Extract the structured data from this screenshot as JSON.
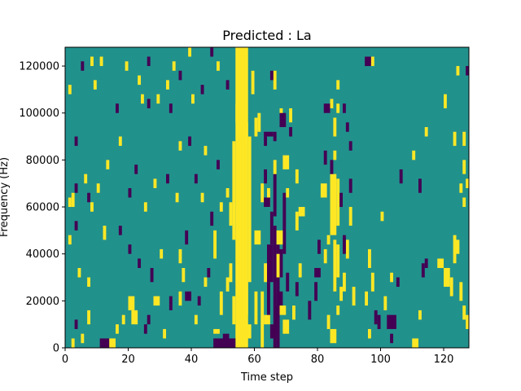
{
  "chart_data": {
    "type": "heatmap",
    "title": "Predicted : La",
    "xlabel": "Time step",
    "ylabel": "Frequency (Hz)",
    "xlim": [
      0,
      128
    ],
    "ylim": [
      0,
      128000
    ],
    "xticks": [
      0,
      20,
      40,
      60,
      80,
      100,
      120
    ],
    "yticks": [
      0,
      20000,
      40000,
      60000,
      80000,
      100000,
      120000
    ],
    "xtick_labels": [
      "0",
      "20",
      "40",
      "60",
      "80",
      "100",
      "120"
    ],
    "ytick_labels": [
      "0",
      "20000",
      "40000",
      "60000",
      "80000",
      "100000",
      "120000"
    ],
    "value_levels": [
      -1,
      0,
      1
    ],
    "colors": {
      "-1": "#440154",
      "0": "#21918c",
      "1": "#fde725"
    },
    "background_value": 0,
    "cells_note": "Each cell is [time_step_start, time_step_end, frequency_low_hz, frequency_high_hz, value]",
    "cells": [
      [
        54,
        58,
        0,
        128000,
        1
      ],
      [
        55,
        58,
        14000,
        96000,
        1
      ],
      [
        56,
        57,
        92000,
        122000,
        1
      ],
      [
        58,
        59,
        28000,
        90000,
        1
      ],
      [
        53,
        54,
        46000,
        88000,
        1
      ],
      [
        52,
        53,
        52000,
        62000,
        1
      ],
      [
        52,
        53,
        28000,
        36000,
        1
      ],
      [
        53,
        54,
        10000,
        22000,
        1
      ],
      [
        57,
        59,
        4000,
        10000,
        1
      ],
      [
        60,
        61,
        10000,
        24000,
        1
      ],
      [
        60,
        61,
        90000,
        98000,
        1
      ],
      [
        61,
        62,
        92000,
        100000,
        1
      ],
      [
        59,
        60,
        108000,
        118000,
        1
      ],
      [
        54,
        55,
        96000,
        104000,
        1
      ],
      [
        55,
        57,
        108000,
        112000,
        1
      ],
      [
        47,
        54,
        0,
        4000,
        -1
      ],
      [
        50,
        52,
        4000,
        6000,
        -1
      ],
      [
        47,
        49,
        6000,
        8000,
        1
      ],
      [
        49,
        50,
        14000,
        24000,
        1
      ],
      [
        51,
        52,
        24000,
        30000,
        1
      ],
      [
        47,
        48,
        38000,
        50000,
        1
      ],
      [
        64,
        65,
        12000,
        28000,
        -1
      ],
      [
        64,
        66,
        28000,
        44000,
        -1
      ],
      [
        65,
        66,
        44000,
        58000,
        -1
      ],
      [
        63,
        64,
        70000,
        76000,
        -1
      ],
      [
        63,
        64,
        86000,
        92000,
        -1
      ],
      [
        64,
        66,
        90000,
        92000,
        -1
      ],
      [
        66,
        67,
        0,
        52000,
        -1
      ],
      [
        66,
        67,
        56000,
        74000,
        -1
      ],
      [
        67,
        68,
        0,
        44000,
        -1
      ],
      [
        67,
        68,
        6000,
        18000,
        -1
      ],
      [
        65,
        67,
        4000,
        10000,
        -1
      ],
      [
        68,
        69,
        18000,
        24000,
        -1
      ],
      [
        68,
        69,
        30000,
        42000,
        -1
      ],
      [
        69,
        70,
        40000,
        66000,
        -1
      ],
      [
        70,
        71,
        24000,
        32000,
        -1
      ],
      [
        69,
        71,
        6000,
        12000,
        1
      ],
      [
        68,
        70,
        14000,
        18000,
        1
      ],
      [
        63,
        65,
        10000,
        14000,
        1
      ],
      [
        62,
        63,
        0,
        24000,
        1
      ],
      [
        63,
        64,
        28000,
        36000,
        1
      ],
      [
        60,
        62,
        44000,
        50000,
        1
      ],
      [
        62,
        63,
        62000,
        70000,
        1
      ],
      [
        64,
        65,
        60000,
        68000,
        1
      ],
      [
        66,
        67,
        74000,
        80000,
        1
      ],
      [
        66,
        67,
        110000,
        118000,
        1
      ],
      [
        67,
        68,
        30000,
        40000,
        1
      ],
      [
        67,
        69,
        44000,
        50000,
        1
      ],
      [
        70,
        71,
        64000,
        68000,
        1
      ],
      [
        69,
        71,
        76000,
        82000,
        1
      ],
      [
        71,
        72,
        96000,
        102000,
        1
      ],
      [
        68,
        69,
        98000,
        102000,
        1
      ],
      [
        65,
        66,
        114000,
        118000,
        -1
      ],
      [
        63,
        65,
        60000,
        64000,
        -1
      ],
      [
        66,
        67,
        88000,
        92000,
        -1
      ],
      [
        68,
        70,
        94000,
        100000,
        -1
      ],
      [
        71,
        72,
        90000,
        94000,
        -1
      ],
      [
        73,
        74,
        70000,
        76000,
        1
      ],
      [
        73,
        74,
        50000,
        58000,
        1
      ],
      [
        74,
        76,
        56000,
        60000,
        1
      ],
      [
        72,
        73,
        12000,
        18000,
        1
      ],
      [
        73,
        74,
        22000,
        28000,
        -1
      ],
      [
        74,
        75,
        30000,
        36000,
        1
      ],
      [
        84,
        86,
        48000,
        74000,
        1
      ],
      [
        85,
        86,
        24000,
        46000,
        1
      ],
      [
        86,
        87,
        52000,
        72000,
        1
      ],
      [
        86,
        87,
        30000,
        44000,
        1
      ],
      [
        85,
        86,
        80000,
        84000,
        1
      ],
      [
        85,
        86,
        90000,
        98000,
        1
      ],
      [
        86,
        87,
        100000,
        104000,
        1
      ],
      [
        86,
        87,
        110000,
        114000,
        1
      ],
      [
        84,
        85,
        102000,
        106000,
        1
      ],
      [
        88,
        89,
        24000,
        32000,
        1
      ],
      [
        87,
        88,
        20000,
        26000,
        1
      ],
      [
        89,
        90,
        38000,
        46000,
        1
      ],
      [
        90,
        91,
        52000,
        60000,
        1
      ],
      [
        91,
        92,
        18000,
        26000,
        1
      ],
      [
        83,
        84,
        8000,
        14000,
        1
      ],
      [
        84,
        86,
        2000,
        8000,
        1
      ],
      [
        86,
        87,
        14000,
        18000,
        1
      ],
      [
        82,
        83,
        36000,
        42000,
        1
      ],
      [
        83,
        84,
        44000,
        48000,
        1
      ],
      [
        81,
        83,
        64000,
        70000,
        1
      ],
      [
        84,
        85,
        74000,
        80000,
        -1
      ],
      [
        82,
        83,
        78000,
        84000,
        -1
      ],
      [
        82,
        84,
        100000,
        104000,
        -1
      ],
      [
        88,
        89,
        100000,
        104000,
        -1
      ],
      [
        87,
        88,
        60000,
        66000,
        -1
      ],
      [
        88,
        89,
        40000,
        48000,
        -1
      ],
      [
        79,
        81,
        30000,
        34000,
        -1
      ],
      [
        77,
        78,
        12000,
        20000,
        -1
      ],
      [
        79,
        80,
        20000,
        28000,
        -1
      ],
      [
        80,
        81,
        40000,
        46000,
        -1
      ],
      [
        90,
        91,
        66000,
        72000,
        -1
      ],
      [
        90,
        91,
        84000,
        88000,
        -1
      ],
      [
        89,
        90,
        92000,
        96000,
        -1
      ],
      [
        95,
        97,
        120000,
        124000,
        -1
      ],
      [
        97,
        98,
        120000,
        124000,
        1
      ],
      [
        96,
        97,
        34000,
        42000,
        1
      ],
      [
        95,
        96,
        18000,
        24000,
        1
      ],
      [
        97,
        98,
        24000,
        32000,
        1
      ],
      [
        96,
        97,
        4000,
        8000,
        1
      ],
      [
        98,
        99,
        10000,
        16000,
        -1
      ],
      [
        99,
        100,
        8000,
        14000,
        -1
      ],
      [
        102,
        104,
        8000,
        14000,
        -1
      ],
      [
        103,
        104,
        2000,
        6000,
        -1
      ],
      [
        104,
        105,
        8000,
        14000,
        -1
      ],
      [
        101,
        102,
        16000,
        22000,
        1
      ],
      [
        103,
        104,
        28000,
        32000,
        1
      ],
      [
        100,
        101,
        54000,
        58000,
        1
      ],
      [
        105,
        106,
        26000,
        30000,
        -1
      ],
      [
        110,
        112,
        0,
        4000,
        1
      ],
      [
        112,
        113,
        12000,
        16000,
        1
      ],
      [
        113,
        114,
        30000,
        36000,
        -1
      ],
      [
        114,
        115,
        34000,
        38000,
        -1
      ],
      [
        118,
        120,
        34000,
        38000,
        1
      ],
      [
        120,
        122,
        26000,
        34000,
        1
      ],
      [
        122,
        123,
        22000,
        30000,
        1
      ],
      [
        123,
        124,
        36000,
        48000,
        1
      ],
      [
        124,
        125,
        40000,
        46000,
        1
      ],
      [
        125,
        126,
        20000,
        28000,
        1
      ],
      [
        126,
        127,
        12000,
        18000,
        1
      ],
      [
        127,
        128,
        8000,
        14000,
        1
      ],
      [
        126,
        127,
        60000,
        64000,
        1
      ],
      [
        125,
        126,
        66000,
        70000,
        1
      ],
      [
        126,
        127,
        74000,
        80000,
        1
      ],
      [
        127,
        128,
        68000,
        72000,
        1
      ],
      [
        126,
        127,
        86000,
        92000,
        1
      ],
      [
        123,
        124,
        86000,
        92000,
        1
      ],
      [
        120,
        121,
        102000,
        108000,
        1
      ],
      [
        124,
        125,
        116000,
        120000,
        1
      ],
      [
        127,
        128,
        116000,
        120000,
        -1
      ],
      [
        114,
        115,
        90000,
        94000,
        1
      ],
      [
        110,
        111,
        80000,
        84000,
        1
      ],
      [
        106,
        107,
        70000,
        76000,
        -1
      ],
      [
        112,
        113,
        66000,
        72000,
        -1
      ],
      [
        2,
        3,
        0,
        4000,
        1
      ],
      [
        5,
        6,
        2000,
        6000,
        1
      ],
      [
        3,
        4,
        8000,
        12000,
        -1
      ],
      [
        7,
        8,
        10000,
        16000,
        1
      ],
      [
        11,
        14,
        0,
        4000,
        -1
      ],
      [
        14,
        16,
        0,
        4000,
        1
      ],
      [
        16,
        17,
        6000,
        10000,
        1
      ],
      [
        18,
        19,
        10000,
        14000,
        1
      ],
      [
        20,
        22,
        16000,
        22000,
        1
      ],
      [
        21,
        23,
        10000,
        16000,
        1
      ],
      [
        25,
        26,
        6000,
        10000,
        -1
      ],
      [
        26,
        27,
        10000,
        14000,
        -1
      ],
      [
        28,
        30,
        18000,
        22000,
        1
      ],
      [
        31,
        32,
        4000,
        8000,
        1
      ],
      [
        33,
        34,
        16000,
        22000,
        -1
      ],
      [
        36,
        37,
        18000,
        24000,
        1
      ],
      [
        38,
        40,
        20000,
        24000,
        -1
      ],
      [
        41,
        42,
        10000,
        14000,
        1
      ],
      [
        42,
        43,
        18000,
        22000,
        -1
      ],
      [
        44,
        45,
        26000,
        30000,
        1
      ],
      [
        45,
        46,
        30000,
        34000,
        -1
      ],
      [
        37,
        38,
        28000,
        34000,
        1
      ],
      [
        36,
        37,
        36000,
        42000,
        1
      ],
      [
        38,
        39,
        44000,
        50000,
        -1
      ],
      [
        30,
        31,
        38000,
        42000,
        1
      ],
      [
        27,
        28,
        28000,
        34000,
        -1
      ],
      [
        23,
        24,
        34000,
        38000,
        -1
      ],
      [
        20,
        21,
        40000,
        44000,
        -1
      ],
      [
        17,
        18,
        48000,
        52000,
        -1
      ],
      [
        12,
        13,
        46000,
        52000,
        1
      ],
      [
        4,
        5,
        30000,
        34000,
        1
      ],
      [
        7,
        8,
        26000,
        30000,
        1
      ],
      [
        1,
        2,
        44000,
        48000,
        1
      ],
      [
        3,
        4,
        50000,
        54000,
        -1
      ],
      [
        1,
        2,
        60000,
        64000,
        1
      ],
      [
        2,
        3,
        60000,
        66000,
        1
      ],
      [
        3,
        4,
        66000,
        70000,
        -1
      ],
      [
        7,
        8,
        62000,
        66000,
        -1
      ],
      [
        8,
        9,
        58000,
        62000,
        1
      ],
      [
        6,
        7,
        70000,
        74000,
        1
      ],
      [
        10,
        11,
        66000,
        70000,
        1
      ],
      [
        13,
        14,
        76000,
        80000,
        1
      ],
      [
        20,
        21,
        64000,
        68000,
        -1
      ],
      [
        25,
        26,
        58000,
        62000,
        1
      ],
      [
        28,
        29,
        68000,
        72000,
        1
      ],
      [
        32,
        33,
        70000,
        74000,
        -1
      ],
      [
        35,
        36,
        62000,
        66000,
        1
      ],
      [
        3,
        4,
        86000,
        90000,
        -1
      ],
      [
        17,
        18,
        86000,
        90000,
        1
      ],
      [
        22,
        23,
        74000,
        78000,
        -1
      ],
      [
        36,
        37,
        84000,
        88000,
        1
      ],
      [
        39,
        40,
        86000,
        90000,
        -1
      ],
      [
        1,
        2,
        108000,
        112000,
        1
      ],
      [
        9,
        10,
        110000,
        114000,
        1
      ],
      [
        16,
        17,
        100000,
        104000,
        -1
      ],
      [
        24,
        25,
        104000,
        108000,
        1
      ],
      [
        26,
        27,
        102000,
        106000,
        -1
      ],
      [
        29,
        30,
        104000,
        108000,
        1
      ],
      [
        32,
        33,
        110000,
        114000,
        1
      ],
      [
        36,
        37,
        114000,
        118000,
        -1
      ],
      [
        40,
        41,
        104000,
        108000,
        1
      ],
      [
        43,
        44,
        108000,
        112000,
        -1
      ],
      [
        5,
        6,
        118000,
        122000,
        -1
      ],
      [
        8,
        9,
        120000,
        124000,
        1
      ],
      [
        11,
        12,
        120000,
        124000,
        1
      ],
      [
        19,
        20,
        118000,
        122000,
        1
      ],
      [
        26,
        27,
        120000,
        124000,
        -1
      ],
      [
        34,
        35,
        118000,
        122000,
        1
      ],
      [
        39,
        40,
        124000,
        128000,
        1
      ],
      [
        46,
        47,
        124000,
        128000,
        -1
      ],
      [
        48,
        49,
        118000,
        122000,
        1
      ],
      [
        51,
        52,
        110000,
        114000,
        -1
      ],
      [
        44,
        45,
        82000,
        86000,
        1
      ],
      [
        48,
        49,
        76000,
        80000,
        -1
      ],
      [
        51,
        52,
        64000,
        68000,
        1
      ],
      [
        49,
        50,
        58000,
        62000,
        1
      ],
      [
        46,
        47,
        52000,
        58000,
        -1
      ],
      [
        43,
        44,
        62000,
        66000,
        1
      ],
      [
        41,
        42,
        70000,
        74000,
        -1
      ],
      [
        23,
        24,
        112000,
        116000,
        1
      ],
      [
        33,
        34,
        100000,
        104000,
        -1
      ]
    ]
  }
}
